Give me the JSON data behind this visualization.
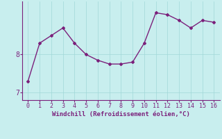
{
  "x": [
    0,
    1,
    2,
    3,
    4,
    5,
    6,
    7,
    8,
    9,
    10,
    11,
    12,
    13,
    14,
    15,
    16
  ],
  "y": [
    7.3,
    8.3,
    8.5,
    8.7,
    8.3,
    8.0,
    7.85,
    7.75,
    7.75,
    7.8,
    8.3,
    9.1,
    9.05,
    8.9,
    8.7,
    8.9,
    8.85
  ],
  "line_color": "#7b207b",
  "marker": "D",
  "marker_size": 2.0,
  "bg_color": "#c8eeee",
  "grid_color": "#a0d8d8",
  "spine_color": "#7b207b",
  "xlabel": "Windchill (Refroidissement éolien,°C)",
  "xlabel_color": "#7b207b",
  "ylabel_ticks": [
    7,
    8
  ],
  "ylim": [
    6.8,
    9.4
  ],
  "xlim": [
    -0.5,
    16.5
  ],
  "tick_color": "#7b207b",
  "grid_lw": 0.5,
  "line_lw": 1.0
}
